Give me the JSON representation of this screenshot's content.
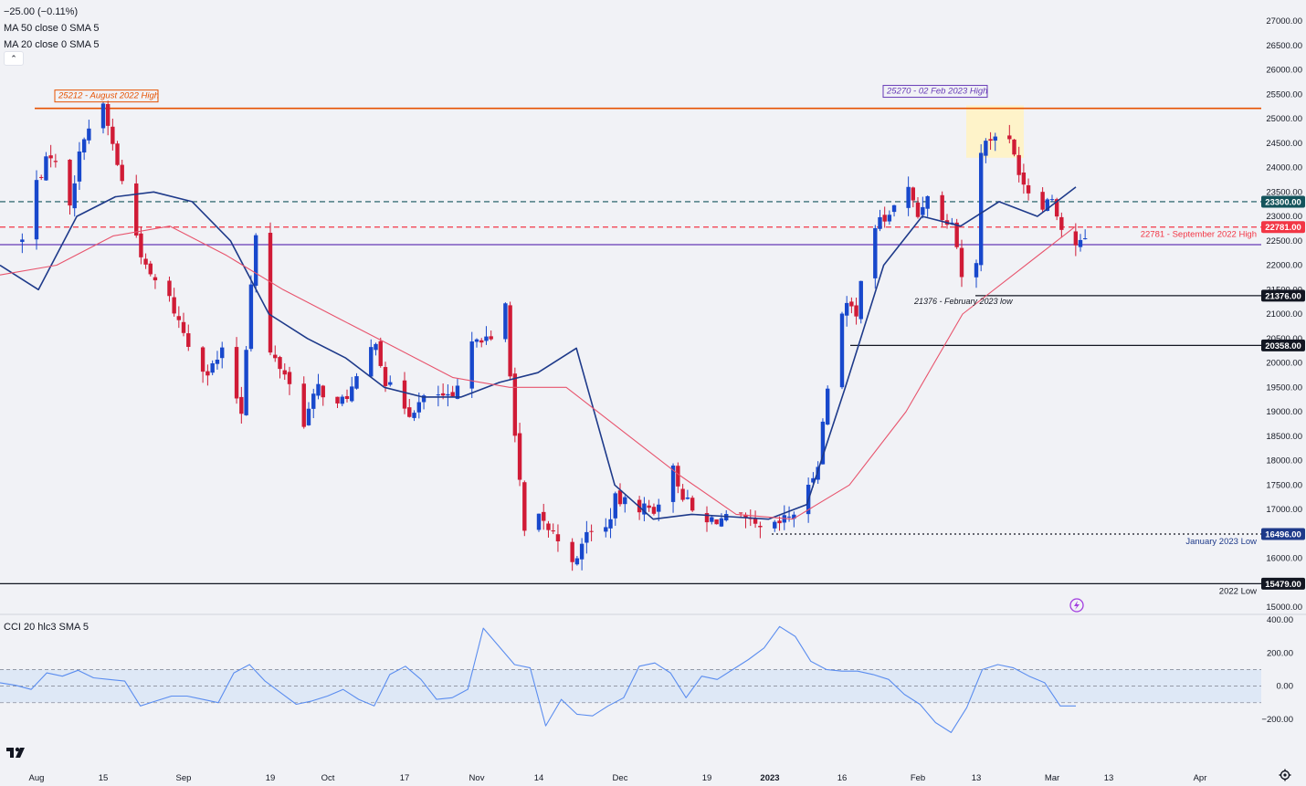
{
  "legend": {
    "change": "−25.00 (−0.11%)",
    "ma50": "MA 50 close 0 SMA 5",
    "ma20": "MA 20 close 0 SMA 5",
    "collapse_icon": "chevron-up-icon"
  },
  "cci_legend": "CCI 20 hlc3 SMA 5",
  "colors": {
    "background": "#f1f2f6",
    "up": "#1848cc",
    "down": "#d01b36",
    "ma20": "#1e3a8a",
    "ma50": "#e8546d",
    "cci": "#5b8def",
    "cci_band": "#d6e4f7",
    "aug_high": "#e65100",
    "feb_high_box": "#fff3c4",
    "teal_dash": "#14545c",
    "red_dash": "#f23645",
    "purple": "#673ab7"
  },
  "chart_data": [
    {
      "type": "candlestick",
      "title": "",
      "ylim": [
        15000,
        27000
      ],
      "y_ticks": [
        15000,
        15500,
        16000,
        16500,
        17000,
        17500,
        18000,
        18500,
        19000,
        19500,
        20000,
        20500,
        21000,
        21500,
        22000,
        22500,
        23000,
        23500,
        24000,
        24500,
        25000,
        25500,
        26000,
        26500,
        27000
      ],
      "x_labels": [
        "Aug",
        "15",
        "Sep",
        "19",
        "Oct",
        "17",
        "Nov",
        "14",
        "Dec",
        "19",
        "2023",
        "16",
        "Feb",
        "13",
        "Mar",
        "13",
        "Apr"
      ],
      "x_label_dates": [
        "2022-08-01",
        "2022-08-15",
        "2022-09-01",
        "2022-09-19",
        "2022-10-01",
        "2022-10-17",
        "2022-11-01",
        "2022-11-14",
        "2022-12-01",
        "2022-12-19",
        "2023-01-01",
        "2023-01-16",
        "2023-02-01",
        "2023-02-13",
        "2023-03-01",
        "2023-03-13",
        "2023-04-01"
      ],
      "anchor_points": [
        [
          "2022-07-29",
          22500
        ],
        [
          "2022-08-01",
          23700
        ],
        [
          "2022-08-04",
          24300
        ],
        [
          "2022-08-08",
          23300
        ],
        [
          "2022-08-11",
          24700
        ],
        [
          "2022-08-15",
          25212
        ],
        [
          "2022-08-19",
          23700
        ],
        [
          "2022-08-24",
          21900
        ],
        [
          "2022-08-29",
          21300
        ],
        [
          "2022-09-02",
          20400
        ],
        [
          "2022-09-06",
          19800
        ],
        [
          "2022-09-09",
          20200
        ],
        [
          "2022-09-13",
          19000
        ],
        [
          "2022-09-15",
          21700
        ],
        [
          "2022-09-16",
          22600
        ],
        [
          "2022-09-18",
          20300
        ],
        [
          "2022-09-22",
          19800
        ],
        [
          "2022-09-26",
          18800
        ],
        [
          "2022-09-29",
          19500
        ],
        [
          "2022-10-03",
          19100
        ],
        [
          "2022-10-07",
          19600
        ],
        [
          "2022-10-11",
          20500
        ],
        [
          "2022-10-13",
          19600
        ],
        [
          "2022-10-18",
          19000
        ],
        [
          "2022-10-23",
          19400
        ],
        [
          "2022-10-27",
          19200
        ],
        [
          "2022-11-01",
          20600
        ],
        [
          "2022-11-04",
          20400
        ],
        [
          "2022-11-07",
          21200
        ],
        [
          "2022-11-09",
          18500
        ],
        [
          "2022-11-11",
          16500
        ],
        [
          "2022-11-14",
          16800
        ],
        [
          "2022-11-18",
          16400
        ],
        [
          "2022-11-22",
          15900
        ],
        [
          "2022-11-24",
          16600
        ],
        [
          "2022-11-27",
          16300
        ],
        [
          "2022-11-30",
          17200
        ],
        [
          "2022-12-03",
          17100
        ],
        [
          "2022-12-08",
          17000
        ],
        [
          "2022-12-12",
          17800
        ],
        [
          "2022-12-14",
          17300
        ],
        [
          "2022-12-18",
          16600
        ],
        [
          "2022-12-20",
          16800
        ],
        [
          "2022-12-26",
          16800
        ],
        [
          "2022-12-31",
          16500
        ],
        [
          "2023-01-03",
          16700
        ],
        [
          "2023-01-08",
          17100
        ],
        [
          "2023-01-11",
          18000
        ],
        [
          "2023-01-13",
          19500
        ],
        [
          "2023-01-14",
          20900
        ],
        [
          "2023-01-17",
          21200
        ],
        [
          "2023-01-19",
          20900
        ],
        [
          "2023-01-21",
          22700
        ],
        [
          "2023-01-26",
          23000
        ],
        [
          "2023-01-29",
          23800
        ],
        [
          "2023-02-01",
          23000
        ],
        [
          "2023-02-03",
          23500
        ],
        [
          "2023-02-06",
          22900
        ],
        [
          "2023-02-08",
          23000
        ],
        [
          "2023-02-10",
          21800
        ],
        [
          "2023-02-13",
          22000
        ],
        [
          "2023-02-14",
          24400
        ],
        [
          "2023-02-17",
          24700
        ],
        [
          "2023-02-20",
          24500
        ],
        [
          "2023-02-23",
          23700
        ],
        [
          "2023-02-26",
          23200
        ],
        [
          "2023-03-01",
          23400
        ],
        [
          "2023-03-02",
          23100
        ],
        [
          "2023-03-04",
          22400
        ],
        [
          "2023-03-08",
          22460
        ]
      ],
      "series": [
        {
          "name": "MA 20",
          "values": [
            [
              22000,
              21500,
              23000,
              23400,
              23500,
              23300,
              22500,
              21000,
              20500,
              20100,
              19500,
              19300,
              19300,
              19600,
              19800,
              20300,
              17500,
              16800,
              16900,
              16850,
              16800,
              17100,
              19500,
              22000,
              23000,
              22800,
              23300,
              23000,
              23600
            ]
          ]
        },
        {
          "name": "MA 50",
          "values": [
            [
              21800,
              22000,
              22600,
              22800,
              22200,
              21500,
              20900,
              20300,
              19700,
              19500,
              19500,
              18600,
              17700,
              16900,
              16800,
              17500,
              19000,
              21000,
              21900,
              22800
            ]
          ]
        }
      ],
      "annotations": [
        {
          "label": "25212 - August 2022 High",
          "y": 25212
        },
        {
          "label": "25270 - 02 Feb 2023 High",
          "y": 25270
        },
        {
          "label": "22781 - September 2022 High",
          "y": 22781
        },
        {
          "label": "21376 - February 2023 low",
          "y": 21376
        },
        {
          "label": "January 2023 Low",
          "y": 16496
        },
        {
          "label": "2022 Low",
          "y": 15479
        }
      ],
      "price_tags": [
        {
          "text": "23300.00",
          "y": 23300
        },
        {
          "text": "22781.00",
          "y": 22781
        },
        {
          "text": "21376.00",
          "y": 21376
        },
        {
          "text": "20358.00",
          "y": 20358
        },
        {
          "text": "16496.00",
          "y": 16496
        },
        {
          "text": "15479.00",
          "y": 15479
        }
      ],
      "purple_level": 22420,
      "current_price": 22420,
      "grid": false
    },
    {
      "type": "line",
      "title": "CCI 20 hlc3 SMA 5",
      "ylim": [
        -300,
        400
      ],
      "y_ticks": [
        400,
        200,
        0,
        -200
      ],
      "y_tick_labels": [
        "400.00",
        "200.00",
        "0.00",
        "−200.00"
      ],
      "band": [
        -100,
        100
      ],
      "series": [
        {
          "name": "CCI",
          "values": [
            [
              20,
              5,
              -20,
              80,
              60,
              95,
              50,
              40,
              30,
              -120,
              -90,
              -60,
              -60,
              -80,
              -100,
              80,
              130,
              30,
              -40,
              -110,
              -90,
              -60,
              -20,
              -80,
              -120,
              70,
              120,
              40,
              -80,
              -70,
              -20,
              350,
              240,
              130,
              110,
              -240,
              -80,
              -170,
              -180,
              -120,
              -70,
              120,
              140,
              80,
              -70,
              60,
              40,
              100,
              160,
              230,
              360,
              300,
              150,
              100,
              90,
              90,
              70,
              40,
              -50,
              -110,
              -220,
              -280,
              -130,
              100,
              130,
              110,
              60,
              20,
              -120,
              -120
            ]
          ]
        }
      ]
    }
  ]
}
